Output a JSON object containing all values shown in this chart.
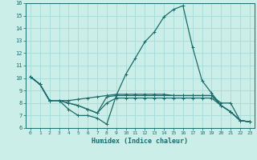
{
  "xlabel": "Humidex (Indice chaleur)",
  "ylabel": "",
  "background_color": "#cceee8",
  "grid_color": "#aaddda",
  "line_color": "#1a6b6b",
  "xlim": [
    -0.5,
    23.5
  ],
  "ylim": [
    6,
    16
  ],
  "yticks": [
    6,
    7,
    8,
    9,
    10,
    11,
    12,
    13,
    14,
    15,
    16
  ],
  "xticks": [
    0,
    1,
    2,
    3,
    4,
    5,
    6,
    7,
    8,
    9,
    10,
    11,
    12,
    13,
    14,
    15,
    16,
    17,
    18,
    19,
    20,
    21,
    22,
    23
  ],
  "lines": [
    {
      "x": [
        0,
        1,
        2,
        3,
        4,
        5,
        6,
        7,
        8,
        9,
        10,
        11,
        12,
        13,
        14,
        15,
        16,
        17,
        18,
        19,
        20,
        21,
        22,
        23
      ],
      "y": [
        10.1,
        9.5,
        8.2,
        8.2,
        7.5,
        7.0,
        7.0,
        6.8,
        6.3,
        8.6,
        10.3,
        11.6,
        12.9,
        13.7,
        14.9,
        15.5,
        15.8,
        12.5,
        9.8,
        8.8,
        7.8,
        7.3,
        6.6,
        6.5
      ]
    },
    {
      "x": [
        0,
        1,
        2,
        3,
        4,
        5,
        6,
        7,
        8,
        9,
        10,
        11,
        12,
        13,
        14,
        15,
        16,
        17,
        18,
        19,
        20,
        21,
        22,
        23
      ],
      "y": [
        10.1,
        9.5,
        8.2,
        8.2,
        8.2,
        8.3,
        8.4,
        8.5,
        8.6,
        8.7,
        8.7,
        8.7,
        8.7,
        8.7,
        8.7,
        8.6,
        8.6,
        8.6,
        8.6,
        8.6,
        8.0,
        8.0,
        6.6,
        6.5
      ]
    },
    {
      "x": [
        0,
        1,
        2,
        3,
        4,
        5,
        6,
        7,
        8,
        9,
        10,
        11,
        12,
        13,
        14,
        15,
        16,
        17,
        18,
        19,
        20,
        21,
        22,
        23
      ],
      "y": [
        10.1,
        9.5,
        8.2,
        8.2,
        8.0,
        7.8,
        7.5,
        7.2,
        8.5,
        8.6,
        8.6,
        8.6,
        8.6,
        8.6,
        8.6,
        8.6,
        8.6,
        8.6,
        8.6,
        8.6,
        7.8,
        7.3,
        6.6,
        6.5
      ]
    },
    {
      "x": [
        0,
        1,
        2,
        3,
        4,
        5,
        6,
        7,
        8,
        9,
        10,
        11,
        12,
        13,
        14,
        15,
        16,
        17,
        18,
        19,
        20,
        21,
        22,
        23
      ],
      "y": [
        10.1,
        9.5,
        8.2,
        8.2,
        8.0,
        7.8,
        7.5,
        7.2,
        8.0,
        8.4,
        8.4,
        8.4,
        8.4,
        8.4,
        8.4,
        8.4,
        8.4,
        8.4,
        8.4,
        8.4,
        7.8,
        7.3,
        6.6,
        6.5
      ]
    }
  ]
}
